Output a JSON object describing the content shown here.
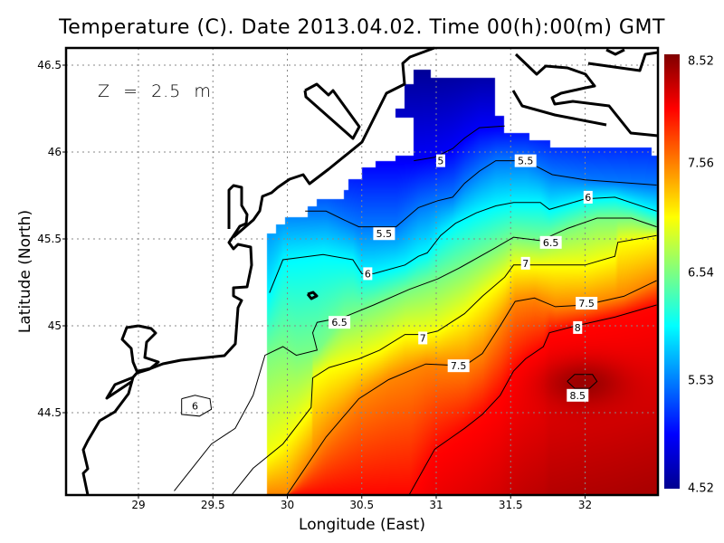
{
  "title": "Temperature (C). Date 2013.04.02. Time 00(h):00(m) GMT",
  "annotation": "Z  =  2.5  m",
  "chart_data": {
    "type": "heatmap",
    "title": "Temperature (C). Date 2013.04.02. Time 00(h):00(m) GMT",
    "xlabel": "Longitude (East)",
    "ylabel": "Latitude (North)",
    "xlim": [
      28.51,
      32.49
    ],
    "ylim": [
      44.03,
      46.6
    ],
    "xticks": [
      "29",
      "29.5",
      "30",
      "30.5",
      "31",
      "31.5",
      "32"
    ],
    "yticks": [
      "44.5",
      "45",
      "45.5",
      "46",
      "46.5"
    ],
    "grid": true,
    "colorbar": {
      "placement": "right",
      "colormap": "jet",
      "range": [
        4.52,
        8.52
      ],
      "ticks": [
        "4.52",
        "5.53",
        "6.54",
        "7.56",
        "8.52"
      ]
    },
    "contours": [
      {
        "level": 5,
        "label": "5",
        "path": [
          [
            30.85,
            45.95
          ],
          [
            30.99,
            45.97
          ],
          [
            31.11,
            46.02
          ],
          [
            31.19,
            46.08
          ],
          [
            31.29,
            46.14
          ],
          [
            31.46,
            46.15
          ]
        ],
        "labels": [
          [
            31.03,
            45.95
          ]
        ]
      },
      {
        "level": 5.5,
        "label": "5.5",
        "path": [
          [
            30.12,
            45.66
          ],
          [
            30.26,
            45.66
          ],
          [
            30.38,
            45.61
          ],
          [
            30.48,
            45.57
          ],
          [
            30.73,
            45.57
          ],
          [
            30.88,
            45.68
          ],
          [
            31.01,
            45.72
          ],
          [
            31.11,
            45.74
          ],
          [
            31.19,
            45.82
          ],
          [
            31.29,
            45.89
          ],
          [
            31.4,
            45.95
          ],
          [
            31.6,
            45.95
          ],
          [
            31.78,
            45.87
          ],
          [
            32.0,
            45.84
          ],
          [
            32.48,
            45.81
          ]
        ],
        "labels": [
          [
            31.6,
            45.95
          ],
          [
            30.65,
            45.53
          ]
        ]
      },
      {
        "level": 6,
        "label": "6",
        "path": [
          [
            29.88,
            45.19
          ],
          [
            29.97,
            45.38
          ],
          [
            30.24,
            45.41
          ],
          [
            30.44,
            45.38
          ],
          [
            30.5,
            45.3
          ],
          [
            30.58,
            45.3
          ],
          [
            30.79,
            45.35
          ],
          [
            30.88,
            45.4
          ],
          [
            30.94,
            45.42
          ],
          [
            31.03,
            45.52
          ],
          [
            31.13,
            45.59
          ],
          [
            31.27,
            45.65
          ],
          [
            31.4,
            45.69
          ],
          [
            31.52,
            45.71
          ],
          [
            31.7,
            45.71
          ],
          [
            31.76,
            45.67
          ],
          [
            32.0,
            45.73
          ],
          [
            32.2,
            45.74
          ],
          [
            32.48,
            45.66
          ]
        ],
        "labels": [
          [
            32.02,
            45.74
          ],
          [
            30.54,
            45.3
          ]
        ]
      },
      {
        "level": 6.5,
        "label": "6.5",
        "path": [
          [
            29.24,
            44.05
          ],
          [
            29.49,
            44.32
          ],
          [
            29.65,
            44.41
          ],
          [
            29.77,
            44.6
          ],
          [
            29.85,
            44.83
          ],
          [
            29.97,
            44.88
          ],
          [
            30.06,
            44.83
          ],
          [
            30.2,
            44.86
          ],
          [
            30.17,
            44.96
          ],
          [
            30.2,
            45.02
          ],
          [
            30.38,
            45.05
          ],
          [
            30.58,
            45.12
          ],
          [
            30.82,
            45.21
          ],
          [
            31.01,
            45.27
          ],
          [
            31.15,
            45.33
          ],
          [
            31.4,
            45.45
          ],
          [
            31.52,
            45.51
          ],
          [
            31.7,
            45.49
          ],
          [
            31.88,
            45.56
          ],
          [
            32.08,
            45.62
          ],
          [
            32.31,
            45.62
          ],
          [
            32.48,
            45.57
          ]
        ],
        "labels": [
          [
            31.77,
            45.48
          ],
          [
            30.35,
            45.02
          ]
        ]
      },
      {
        "level": 7,
        "label": "7",
        "path": [
          [
            29.63,
            44.03
          ],
          [
            29.77,
            44.18
          ],
          [
            29.97,
            44.32
          ],
          [
            30.16,
            44.53
          ],
          [
            30.17,
            44.7
          ],
          [
            30.28,
            44.76
          ],
          [
            30.48,
            44.81
          ],
          [
            30.62,
            44.86
          ],
          [
            30.79,
            44.95
          ],
          [
            30.91,
            44.95
          ],
          [
            31.01,
            44.97
          ],
          [
            31.19,
            45.07
          ],
          [
            31.31,
            45.17
          ],
          [
            31.46,
            45.28
          ],
          [
            31.52,
            45.35
          ],
          [
            31.7,
            45.35
          ],
          [
            32.0,
            45.35
          ],
          [
            32.2,
            45.4
          ],
          [
            32.22,
            45.48
          ],
          [
            32.48,
            45.52
          ]
        ],
        "labels": [
          [
            31.6,
            45.36
          ],
          [
            30.91,
            44.93
          ]
        ]
      },
      {
        "level": 7.5,
        "label": "7.5",
        "path": [
          [
            30.0,
            44.03
          ],
          [
            30.26,
            44.36
          ],
          [
            30.48,
            44.58
          ],
          [
            30.68,
            44.69
          ],
          [
            30.93,
            44.78
          ],
          [
            31.19,
            44.77
          ],
          [
            31.31,
            44.84
          ],
          [
            31.43,
            45.0
          ],
          [
            31.53,
            45.14
          ],
          [
            31.66,
            45.16
          ],
          [
            31.8,
            45.11
          ],
          [
            32.0,
            45.12
          ],
          [
            32.26,
            45.17
          ],
          [
            32.48,
            45.26
          ]
        ],
        "labels": [
          [
            32.01,
            45.13
          ],
          [
            31.15,
            44.77
          ]
        ]
      },
      {
        "level": 8,
        "label": "8",
        "path": [
          [
            30.82,
            44.03
          ],
          [
            30.99,
            44.29
          ],
          [
            31.19,
            44.41
          ],
          [
            31.31,
            44.49
          ],
          [
            31.43,
            44.6
          ],
          [
            31.52,
            44.74
          ],
          [
            31.6,
            44.81
          ],
          [
            31.72,
            44.88
          ],
          [
            31.76,
            44.96
          ],
          [
            31.94,
            45.0
          ],
          [
            32.2,
            45.05
          ],
          [
            32.48,
            45.12
          ]
        ],
        "labels": [
          [
            31.95,
            44.99
          ]
        ]
      }
    ],
    "closed_contours": [
      {
        "level": 6,
        "label": "6",
        "path": [
          [
            29.29,
            44.58
          ],
          [
            29.38,
            44.6
          ],
          [
            29.48,
            44.58
          ],
          [
            29.49,
            44.52
          ],
          [
            29.41,
            44.48
          ],
          [
            29.29,
            44.49
          ],
          [
            29.29,
            44.58
          ]
        ],
        "labels": [
          [
            29.38,
            44.54
          ]
        ]
      },
      {
        "level": 8.5,
        "label": "8.5",
        "path": [
          [
            31.88,
            44.68
          ],
          [
            31.93,
            44.72
          ],
          [
            32.05,
            44.72
          ],
          [
            32.08,
            44.68
          ],
          [
            32.03,
            44.64
          ],
          [
            31.93,
            44.64
          ],
          [
            31.88,
            44.68
          ]
        ],
        "labels": [
          [
            31.95,
            44.6
          ]
        ]
      }
    ]
  }
}
